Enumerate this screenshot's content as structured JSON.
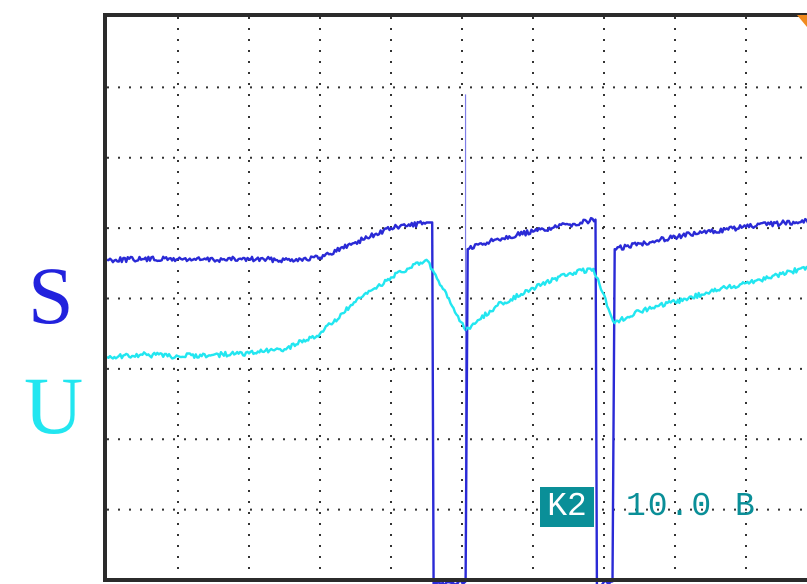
{
  "chart_data": {
    "type": "line",
    "title": "",
    "xlabel": "",
    "ylabel": "",
    "grid": true,
    "grid_divisions": {
      "x": 10,
      "y": 8
    },
    "grid_style": "dotted",
    "x_range": [
      0,
      10
    ],
    "y_range": [
      0,
      8
    ],
    "series": [
      {
        "name": "S",
        "color": "#2a2ad6",
        "points": [
          [
            0,
            4.55
          ],
          [
            0.5,
            4.56
          ],
          [
            1,
            4.56
          ],
          [
            1.5,
            4.55
          ],
          [
            2,
            4.56
          ],
          [
            2.5,
            4.55
          ],
          [
            3,
            4.58
          ],
          [
            3.5,
            4.8
          ],
          [
            4,
            5.0
          ],
          [
            4.5,
            5.08
          ],
          [
            4.58,
            5.08
          ],
          [
            4.6,
            -0.08
          ],
          [
            5.05,
            -0.02
          ],
          [
            5.08,
            4.7
          ],
          [
            5.5,
            4.85
          ],
          [
            6,
            4.95
          ],
          [
            6.5,
            5.05
          ],
          [
            6.88,
            5.12
          ],
          [
            6.9,
            -0.07
          ],
          [
            7.12,
            -0.02
          ],
          [
            7.15,
            4.7
          ],
          [
            7.5,
            4.78
          ],
          [
            8,
            4.88
          ],
          [
            8.5,
            4.95
          ],
          [
            9,
            5.02
          ],
          [
            9.5,
            5.07
          ],
          [
            10,
            5.12
          ]
        ]
      },
      {
        "name": "U",
        "color": "#22e6f0",
        "points": [
          [
            0,
            3.17
          ],
          [
            0.5,
            3.2
          ],
          [
            1,
            3.18
          ],
          [
            1.5,
            3.2
          ],
          [
            2,
            3.22
          ],
          [
            2.5,
            3.28
          ],
          [
            3,
            3.5
          ],
          [
            3.5,
            3.95
          ],
          [
            4,
            4.3
          ],
          [
            4.5,
            4.55
          ],
          [
            5.05,
            3.55
          ],
          [
            5.5,
            3.9
          ],
          [
            6,
            4.15
          ],
          [
            6.5,
            4.35
          ],
          [
            6.85,
            4.42
          ],
          [
            7.15,
            3.65
          ],
          [
            7.5,
            3.82
          ],
          [
            8,
            3.95
          ],
          [
            8.5,
            4.1
          ],
          [
            9,
            4.22
          ],
          [
            9.5,
            4.35
          ],
          [
            10,
            4.48
          ]
        ]
      }
    ],
    "spikes": [
      {
        "x": 5.05,
        "to_y": 6.9
      }
    ],
    "trace_labels": [
      {
        "text": "S",
        "color": "#2222dd"
      },
      {
        "text": "U",
        "color": "#22e6f0"
      }
    ],
    "channel_readout": {
      "badge": "K2",
      "scale": "10.0 B",
      "badge_bg": "#0a8f98",
      "text_color": "#0a8f98"
    },
    "trigger_marker_color": "#f08a1e"
  }
}
